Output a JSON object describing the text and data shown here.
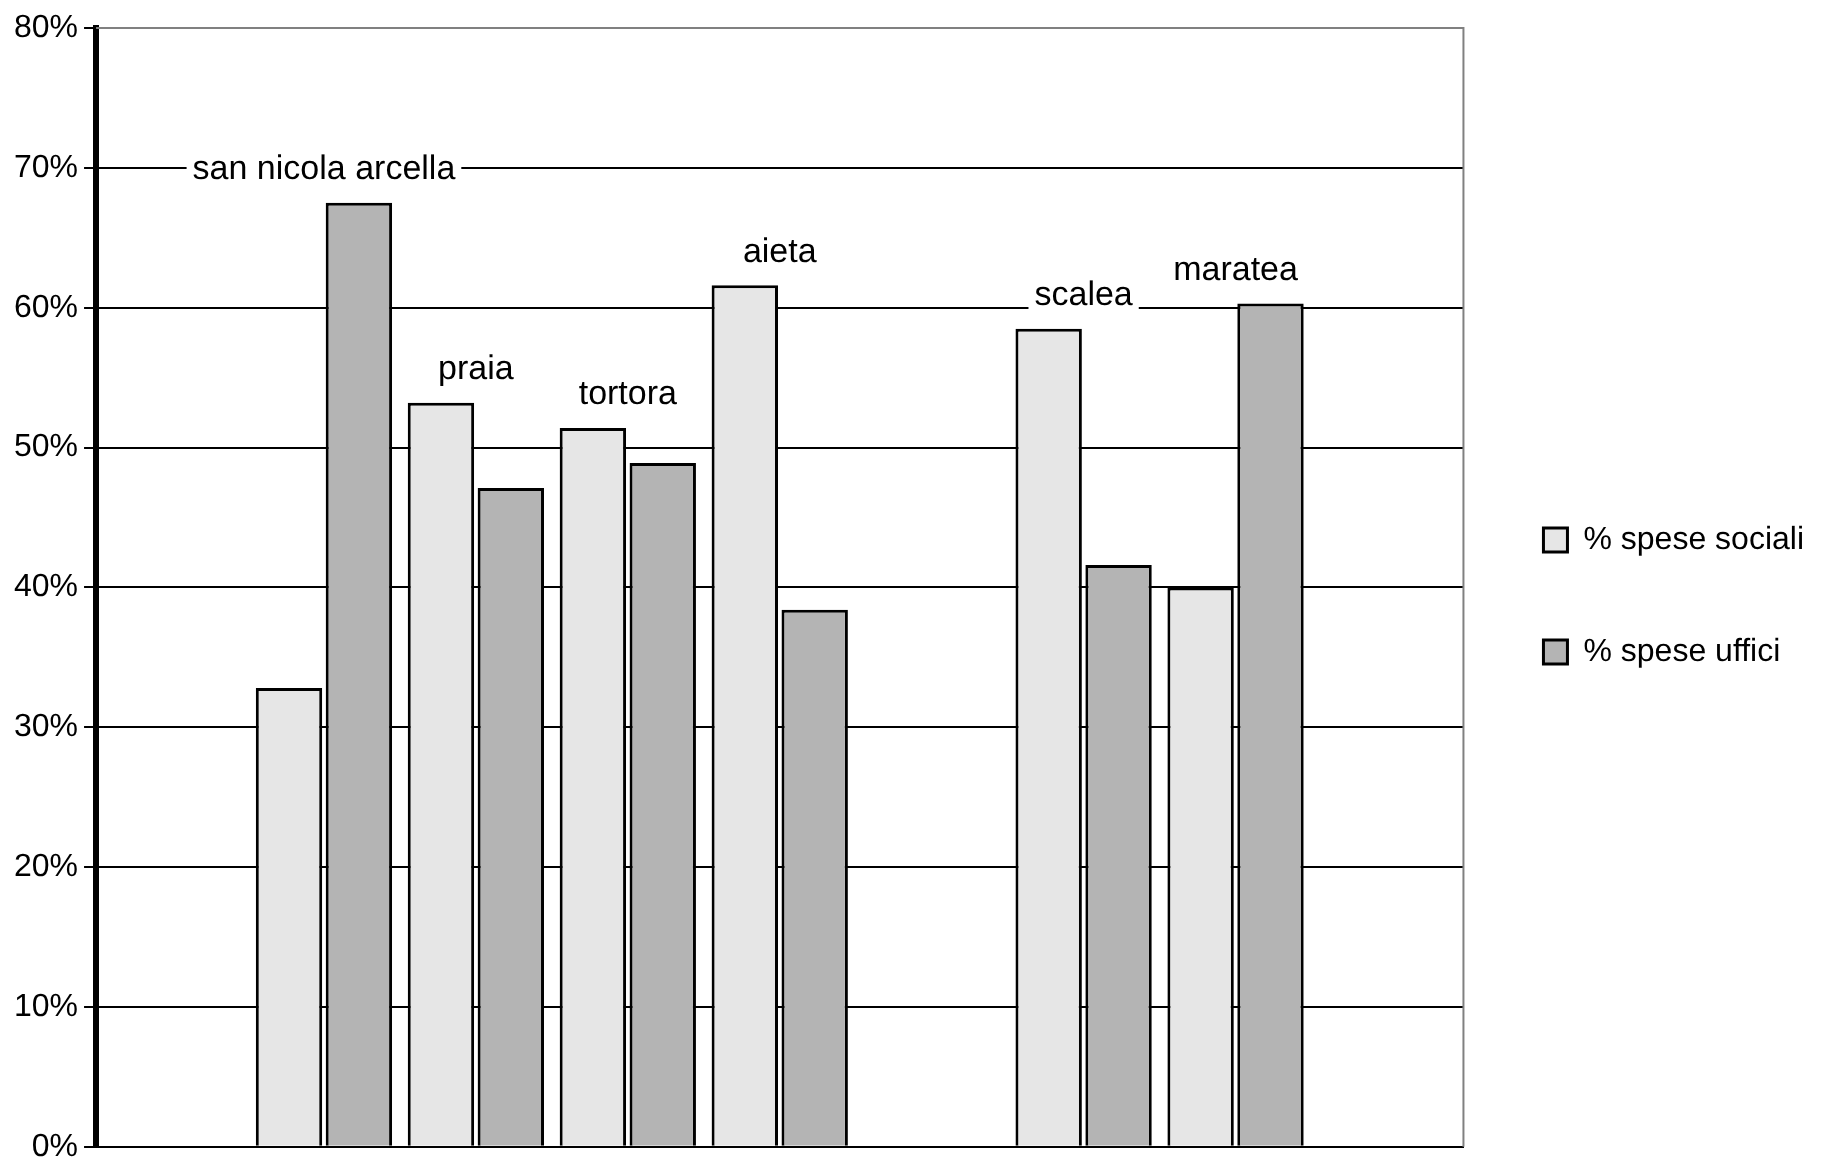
{
  "chart_data": {
    "type": "bar",
    "categories": [
      null,
      "san nicola arcella",
      "praia",
      "tortora",
      "aieta",
      null,
      "scalea",
      "maratea",
      null
    ],
    "series": [
      {
        "name": "% spese sociali",
        "color": "#e6e6e6",
        "values": [
          null,
          32.8,
          53.2,
          51.4,
          61.6,
          null,
          58.5,
          40.0,
          null
        ]
      },
      {
        "name": "% spese uffici",
        "color": "#b4b4b4",
        "values": [
          null,
          67.5,
          47.1,
          48.9,
          38.4,
          null,
          41.6,
          60.3,
          null
        ]
      }
    ],
    "ylim": [
      0,
      80
    ],
    "yticks": [
      {
        "value": 0,
        "label": "0%"
      },
      {
        "value": 10,
        "label": "10%"
      },
      {
        "value": 20,
        "label": "20%"
      },
      {
        "value": 30,
        "label": "30%"
      },
      {
        "value": 40,
        "label": "40%"
      },
      {
        "value": 50,
        "label": "50%"
      },
      {
        "value": 60,
        "label": "60%"
      },
      {
        "value": 70,
        "label": "70%"
      },
      {
        "value": 80,
        "label": "80%"
      }
    ],
    "grid": "y",
    "legend": "right",
    "tick_labels": "y"
  }
}
